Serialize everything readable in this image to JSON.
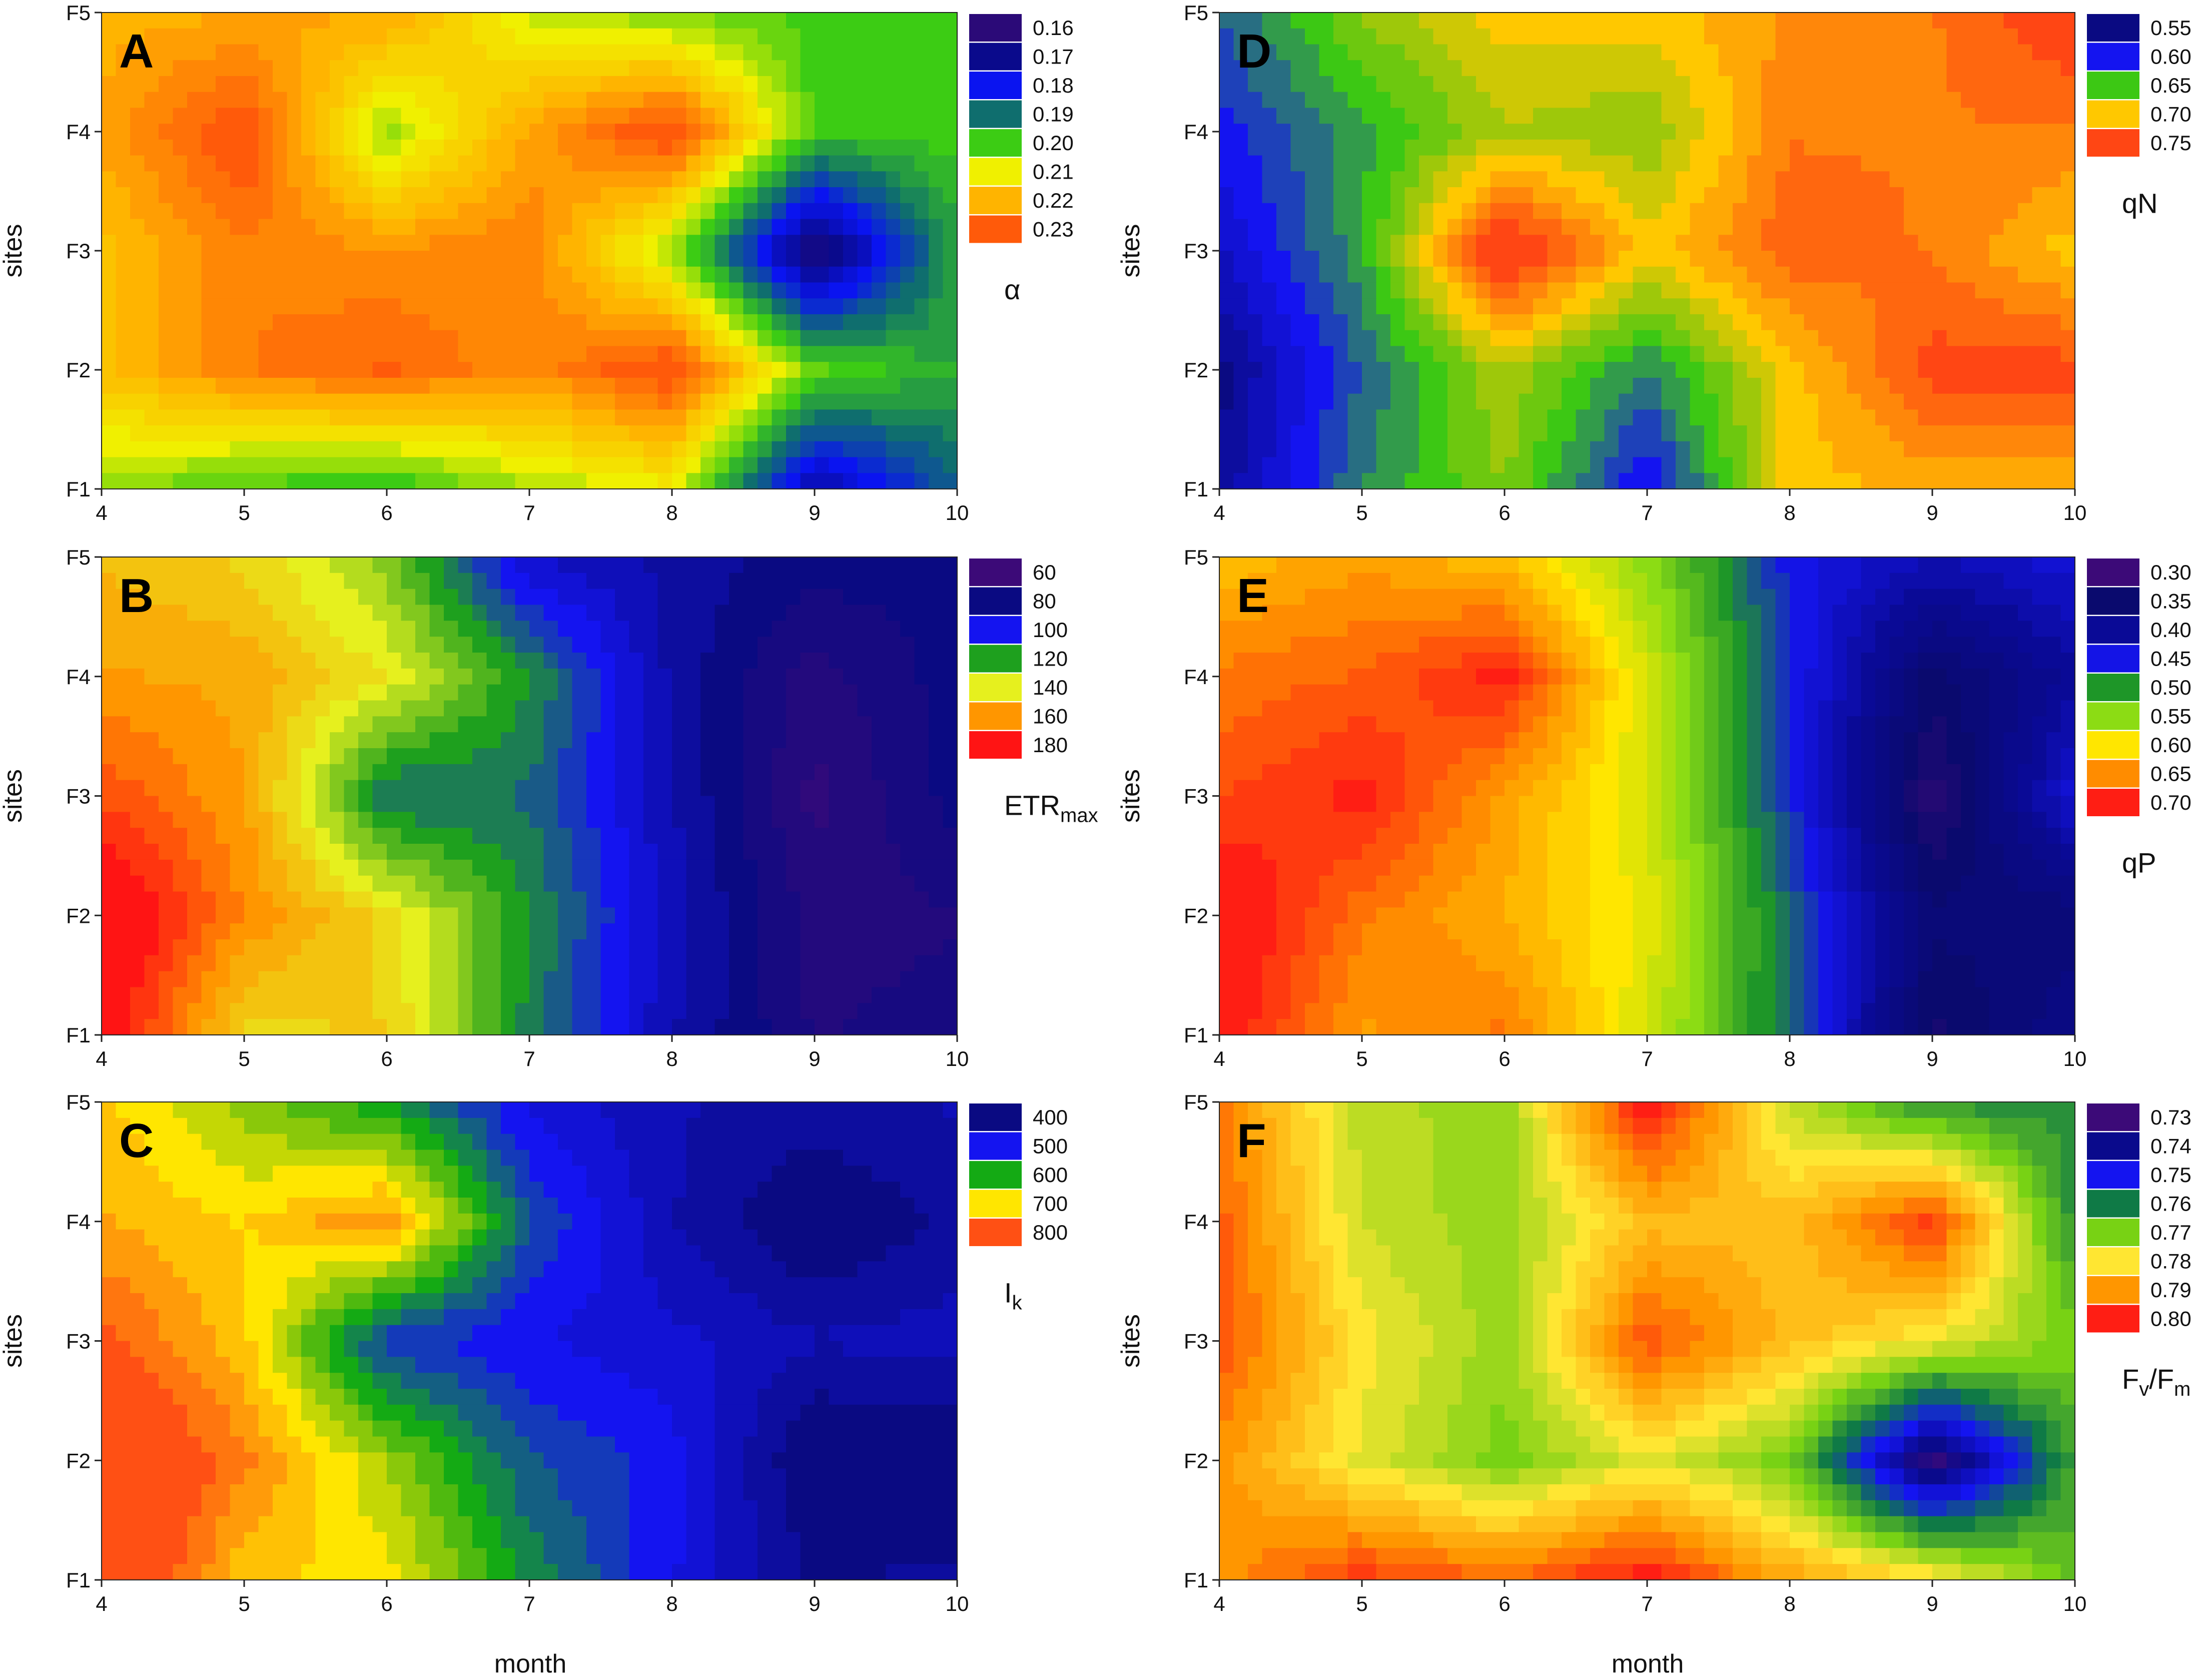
{
  "figure": {
    "xlabel": "month",
    "ylabel": "sites"
  },
  "chart_data": [
    {
      "type": "heatmap",
      "panel_label": "A",
      "xlabel": "",
      "ylabel": "sites",
      "x": [
        4,
        5,
        6,
        7,
        8,
        9,
        10
      ],
      "y": [
        "F1",
        "F2",
        "F3",
        "F4",
        "F5"
      ],
      "xlim": [
        4,
        10
      ],
      "colorbar_label": "α",
      "colorbar_sub": "",
      "legend": [
        {
          "label": "0.16",
          "color": "#2b0a78"
        },
        {
          "label": "0.17",
          "color": "#0a0a8c"
        },
        {
          "label": "0.18",
          "color": "#0a14f0"
        },
        {
          "label": "0.19",
          "color": "#0f6e6e"
        },
        {
          "label": "0.20",
          "color": "#3ccc14"
        },
        {
          "label": "0.21",
          "color": "#f0f000"
        },
        {
          "label": "0.22",
          "color": "#ffb400"
        },
        {
          "label": "0.23",
          "color": "#ff5a0a"
        }
      ],
      "values": [
        [
          0.205,
          0.2,
          0.198,
          0.206,
          0.21,
          0.172,
          0.188
        ],
        [
          0.218,
          0.226,
          0.229,
          0.224,
          0.233,
          0.202,
          0.196
        ],
        [
          0.218,
          0.226,
          0.224,
          0.226,
          0.205,
          0.163,
          0.196
        ],
        [
          0.222,
          0.232,
          0.205,
          0.222,
          0.233,
          0.2,
          0.2
        ],
        [
          0.22,
          0.221,
          0.222,
          0.208,
          0.203,
          0.2,
          0.2
        ]
      ]
    },
    {
      "type": "heatmap",
      "panel_label": "B",
      "xlabel": "",
      "ylabel": "sites",
      "x": [
        4,
        5,
        6,
        7,
        8,
        9,
        10
      ],
      "y": [
        "F1",
        "F2",
        "F3",
        "F4",
        "F5"
      ],
      "xlim": [
        4,
        10
      ],
      "colorbar_label": "ETR",
      "colorbar_sub": "max",
      "legend": [
        {
          "label": "60",
          "color": "#3c0a78"
        },
        {
          "label": "80",
          "color": "#0a0a82"
        },
        {
          "label": "100",
          "color": "#1414f0"
        },
        {
          "label": "120",
          "color": "#1ea01e"
        },
        {
          "label": "140",
          "color": "#e6f01e"
        },
        {
          "label": "160",
          "color": "#ff9600"
        },
        {
          "label": "180",
          "color": "#ff1414"
        }
      ],
      "values": [
        [
          184,
          146,
          148,
          115,
          88,
          72,
          75
        ],
        [
          190,
          162,
          145,
          118,
          90,
          70,
          72
        ],
        [
          172,
          158,
          112,
          112,
          88,
          66,
          80
        ],
        [
          158,
          156,
          142,
          118,
          86,
          70,
          80
        ],
        [
          152,
          146,
          130,
          92,
          86,
          80,
          80
        ]
      ]
    },
    {
      "type": "heatmap",
      "panel_label": "C",
      "xlabel": "month",
      "ylabel": "sites",
      "x": [
        4,
        5,
        6,
        7,
        8,
        9,
        10
      ],
      "y": [
        "F1",
        "F2",
        "F3",
        "F4",
        "F5"
      ],
      "xlim": [
        4,
        10
      ],
      "colorbar_label": "I",
      "colorbar_sub": "k",
      "legend": [
        {
          "label": "400",
          "color": "#0a0a82"
        },
        {
          "label": "500",
          "color": "#1414f0"
        },
        {
          "label": "600",
          "color": "#14aa14"
        },
        {
          "label": "700",
          "color": "#ffe600"
        },
        {
          "label": "800",
          "color": "#ff5014"
        }
      ],
      "values": [
        [
          860,
          720,
          700,
          580,
          490,
          410,
          420
        ],
        [
          860,
          770,
          660,
          540,
          500,
          380,
          380
        ],
        [
          800,
          720,
          520,
          490,
          470,
          440,
          450
        ],
        [
          740,
          710,
          760,
          540,
          440,
          380,
          420
        ],
        [
          720,
          650,
          590,
          480,
          440,
          430,
          440
        ]
      ]
    },
    {
      "type": "heatmap",
      "panel_label": "D",
      "xlabel": "",
      "ylabel": "sites",
      "x": [
        4,
        5,
        6,
        7,
        8,
        9,
        10
      ],
      "y": [
        "F1",
        "F2",
        "F3",
        "F4",
        "F5"
      ],
      "xlim": [
        4,
        10
      ],
      "colorbar_label": "qN",
      "colorbar_sub": "",
      "legend": [
        {
          "label": "0.55",
          "color": "#0a0a82"
        },
        {
          "label": "0.60",
          "color": "#1414f0"
        },
        {
          "label": "0.65",
          "color": "#3cc814"
        },
        {
          "label": "0.70",
          "color": "#ffc800"
        },
        {
          "label": "0.75",
          "color": "#ff4614"
        }
      ],
      "values": [
        [
          0.56,
          0.63,
          0.67,
          0.59,
          0.7,
          0.71,
          0.71
        ],
        [
          0.55,
          0.62,
          0.68,
          0.63,
          0.7,
          0.75,
          0.75
        ],
        [
          0.58,
          0.64,
          0.77,
          0.7,
          0.74,
          0.73,
          0.7
        ],
        [
          0.6,
          0.64,
          0.68,
          0.67,
          0.73,
          0.73,
          0.73
        ],
        [
          0.62,
          0.67,
          0.7,
          0.7,
          0.72,
          0.73,
          0.76
        ]
      ]
    },
    {
      "type": "heatmap",
      "panel_label": "E",
      "xlabel": "",
      "ylabel": "sites",
      "x": [
        4,
        5,
        6,
        7,
        8,
        9,
        10
      ],
      "y": [
        "F1",
        "F2",
        "F3",
        "F4",
        "F5"
      ],
      "xlim": [
        4,
        10
      ],
      "colorbar_label": "qP",
      "colorbar_sub": "",
      "legend": [
        {
          "label": "0.30",
          "color": "#3c0a78"
        },
        {
          "label": "0.35",
          "color": "#0a0a6e"
        },
        {
          "label": "0.40",
          "color": "#0a0a96"
        },
        {
          "label": "0.45",
          "color": "#1414e6"
        },
        {
          "label": "0.50",
          "color": "#1e9628"
        },
        {
          "label": "0.55",
          "color": "#8cdc14"
        },
        {
          "label": "0.60",
          "color": "#ffe600"
        },
        {
          "label": "0.65",
          "color": "#ff8c00"
        },
        {
          "label": "0.70",
          "color": "#ff1e14"
        }
      ],
      "values": [
        [
          0.71,
          0.64,
          0.66,
          0.58,
          0.48,
          0.34,
          0.38
        ],
        [
          0.72,
          0.66,
          0.63,
          0.59,
          0.48,
          0.36,
          0.36
        ],
        [
          0.68,
          0.7,
          0.64,
          0.58,
          0.46,
          0.32,
          0.44
        ],
        [
          0.66,
          0.67,
          0.7,
          0.58,
          0.46,
          0.35,
          0.4
        ],
        [
          0.62,
          0.64,
          0.62,
          0.55,
          0.45,
          0.42,
          0.44
        ]
      ]
    },
    {
      "type": "heatmap",
      "panel_label": "F",
      "xlabel": "month",
      "ylabel": "sites",
      "x": [
        4,
        5,
        6,
        7,
        8,
        9,
        10
      ],
      "y": [
        "F1",
        "F2",
        "F3",
        "F4",
        "F5"
      ],
      "xlim": [
        4,
        10
      ],
      "colorbar_label": "F",
      "colorbar_sub": "v",
      "colorbar_label2": "/F",
      "colorbar_sub2": "m",
      "legend": [
        {
          "label": "0.73",
          "color": "#3c0a78"
        },
        {
          "label": "0.74",
          "color": "#0a0a8c"
        },
        {
          "label": "0.75",
          "color": "#1414f0"
        },
        {
          "label": "0.76",
          "color": "#0f7a46"
        },
        {
          "label": "0.77",
          "color": "#78d214"
        },
        {
          "label": "0.78",
          "color": "#ffe632"
        },
        {
          "label": "0.79",
          "color": "#ff9600"
        },
        {
          "label": "0.80",
          "color": "#ff1e14"
        }
      ],
      "values": [
        [
          0.79,
          0.798,
          0.794,
          0.801,
          0.788,
          0.782,
          0.768
        ],
        [
          0.79,
          0.778,
          0.77,
          0.778,
          0.77,
          0.732,
          0.765
        ],
        [
          0.796,
          0.78,
          0.772,
          0.796,
          0.785,
          0.779,
          0.77
        ],
        [
          0.795,
          0.776,
          0.772,
          0.785,
          0.785,
          0.798,
          0.762
        ],
        [
          0.792,
          0.775,
          0.772,
          0.802,
          0.775,
          0.762,
          0.762
        ]
      ]
    }
  ]
}
